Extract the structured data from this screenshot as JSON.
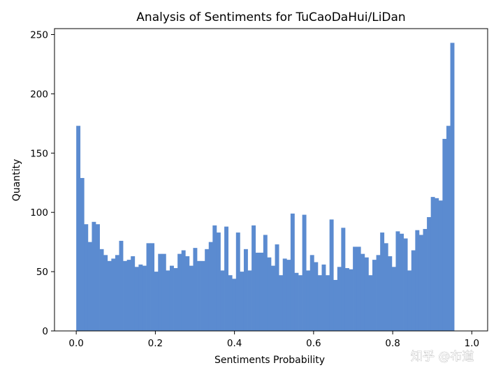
{
  "colors": {
    "bar": "#5b8bd0",
    "axis": "#000000",
    "background": "#ffffff"
  },
  "watermark": "知乎 @布道",
  "chart_data": {
    "type": "bar",
    "title": "Analysis of Sentiments for TuCaoDaHui/LiDan",
    "xlabel": "Sentiments Probability",
    "ylabel": "Quantity",
    "xlim": [
      -0.055,
      1.04
    ],
    "ylim": [
      0,
      255
    ],
    "xticks": [
      0.0,
      0.2,
      0.4,
      0.6,
      0.8,
      1.0
    ],
    "xtick_labels": [
      "0.0",
      "0.2",
      "0.4",
      "0.6",
      "0.8",
      "1.0"
    ],
    "yticks": [
      0,
      50,
      100,
      150,
      200,
      250
    ],
    "ytick_labels": [
      "0",
      "50",
      "100",
      "150",
      "200",
      "250"
    ],
    "grid": false,
    "bin_start": 0.0,
    "bin_width": 0.00985,
    "values": [
      173,
      129,
      90,
      75,
      92,
      90,
      69,
      64,
      59,
      61,
      64,
      76,
      59,
      60,
      63,
      54,
      56,
      55,
      74,
      74,
      50,
      65,
      65,
      51,
      55,
      53,
      65,
      68,
      63,
      55,
      70,
      59,
      59,
      69,
      75,
      89,
      83,
      51,
      88,
      47,
      44,
      83,
      50,
      69,
      51,
      89,
      66,
      66,
      81,
      62,
      55,
      73,
      47,
      61,
      60,
      99,
      49,
      47,
      98,
      51,
      64,
      58,
      47,
      56,
      47,
      94,
      43,
      54,
      87,
      53,
      52,
      71,
      71,
      65,
      62,
      47,
      60,
      64,
      83,
      74,
      63,
      54,
      84,
      82,
      78,
      51,
      68,
      85,
      81,
      86,
      96,
      113,
      112,
      110,
      162,
      173,
      243
    ]
  }
}
